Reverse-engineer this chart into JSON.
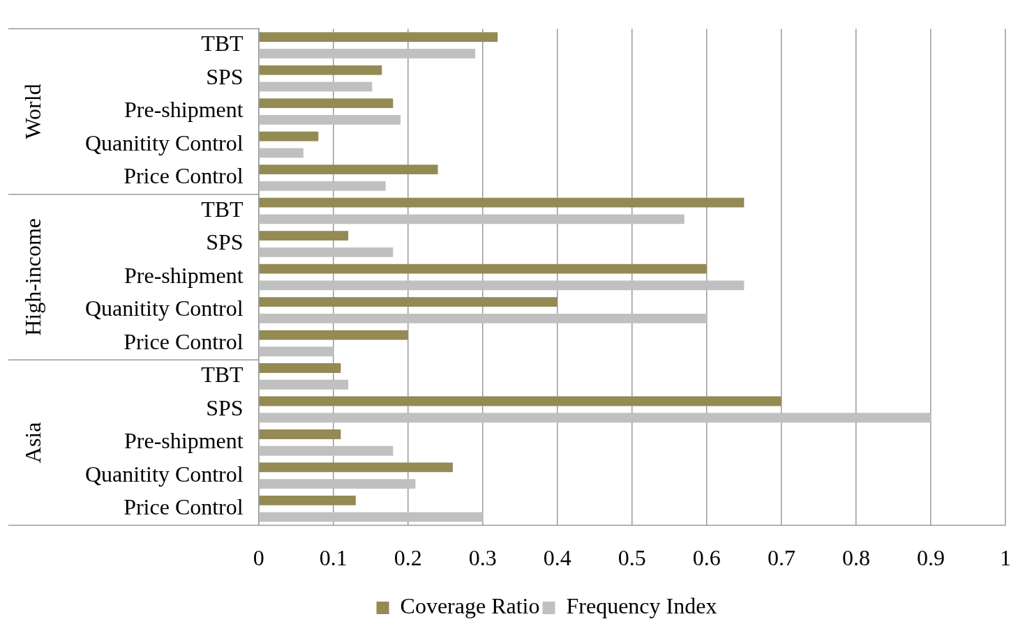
{
  "chart_data": {
    "type": "bar",
    "orientation": "horizontal",
    "categories": [
      "TBT",
      "SPS",
      "Pre-shipment",
      "Quanitity Control",
      "Price Control",
      "TBT",
      "SPS",
      "Pre-shipment",
      "Quanitity Control",
      "Price Control",
      "TBT",
      "SPS",
      "Pre-shipment",
      "Quanitity Control",
      "Price Control"
    ],
    "annotations": [
      "World",
      "High-income",
      "Asia"
    ],
    "series": [
      {
        "name": "Coverage Ratio",
        "color": "#948a54",
        "values": [
          0.32,
          0.165,
          0.18,
          0.08,
          0.24,
          0.65,
          0.12,
          0.6,
          0.4,
          0.2,
          0.11,
          0.7,
          0.11,
          0.26,
          0.13
        ]
      },
      {
        "name": "Frequency Index",
        "color": "#c0c0c0",
        "values": [
          0.29,
          0.152,
          0.19,
          0.06,
          0.17,
          0.57,
          0.18,
          0.65,
          0.6,
          0.1,
          0.12,
          0.9,
          0.18,
          0.21,
          0.3
        ]
      }
    ],
    "xlim": [
      0,
      1
    ],
    "xticks": [
      0,
      0.1,
      0.2,
      0.3,
      0.4,
      0.5,
      0.6,
      0.7,
      0.8,
      0.9,
      1
    ],
    "grid": "x",
    "legend": "bottom"
  }
}
